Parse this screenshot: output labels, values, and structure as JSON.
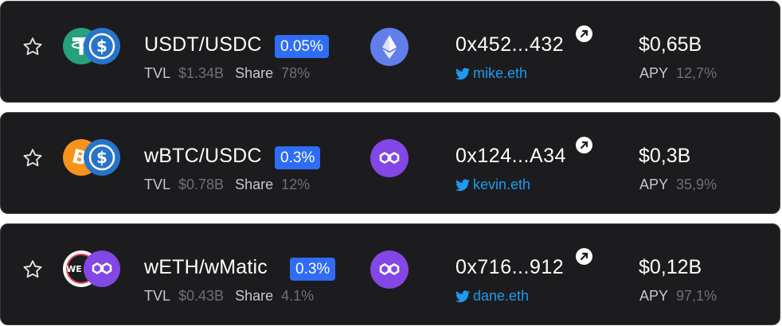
{
  "colors": {
    "row_bg": "#1c1c1e",
    "fee_badge": "#2f6df6",
    "twitter": "#1d9bf0",
    "eth_chain": "#627eea",
    "polygon_chain": "#8247e5"
  },
  "labels": {
    "tvl": "TVL",
    "share": "Share",
    "apy": "APY"
  },
  "pools": [
    {
      "pair": "USDT/USDC",
      "fee": "0.05%",
      "tvl": "$1.34B",
      "share": "78%",
      "chain_icon": "ethereum-icon",
      "address": "0x452...432",
      "twitter": "mike.eth",
      "amount": "$0,65B",
      "apy": "12,7%",
      "token_icons": [
        "tether-icon",
        "usdc-icon"
      ]
    },
    {
      "pair": "wBTC/USDC",
      "fee": "0.3%",
      "tvl": "$0.78B",
      "share": "12%",
      "chain_icon": "polygon-icon",
      "address": "0x124...A34",
      "twitter": "kevin.eth",
      "amount": "$0,3B",
      "apy": "35,9%",
      "token_icons": [
        "bitcoin-icon",
        "usdc-icon"
      ]
    },
    {
      "pair": "wETH/wMatic",
      "fee": "0.3%",
      "tvl": "$0.43B",
      "share": "4.1%",
      "chain_icon": "polygon-icon",
      "address": "0x716...912",
      "twitter": "dane.eth",
      "amount": "$0,12B",
      "apy": "97,1%",
      "token_icons": [
        "weth-icon",
        "polygon-icon"
      ]
    }
  ]
}
